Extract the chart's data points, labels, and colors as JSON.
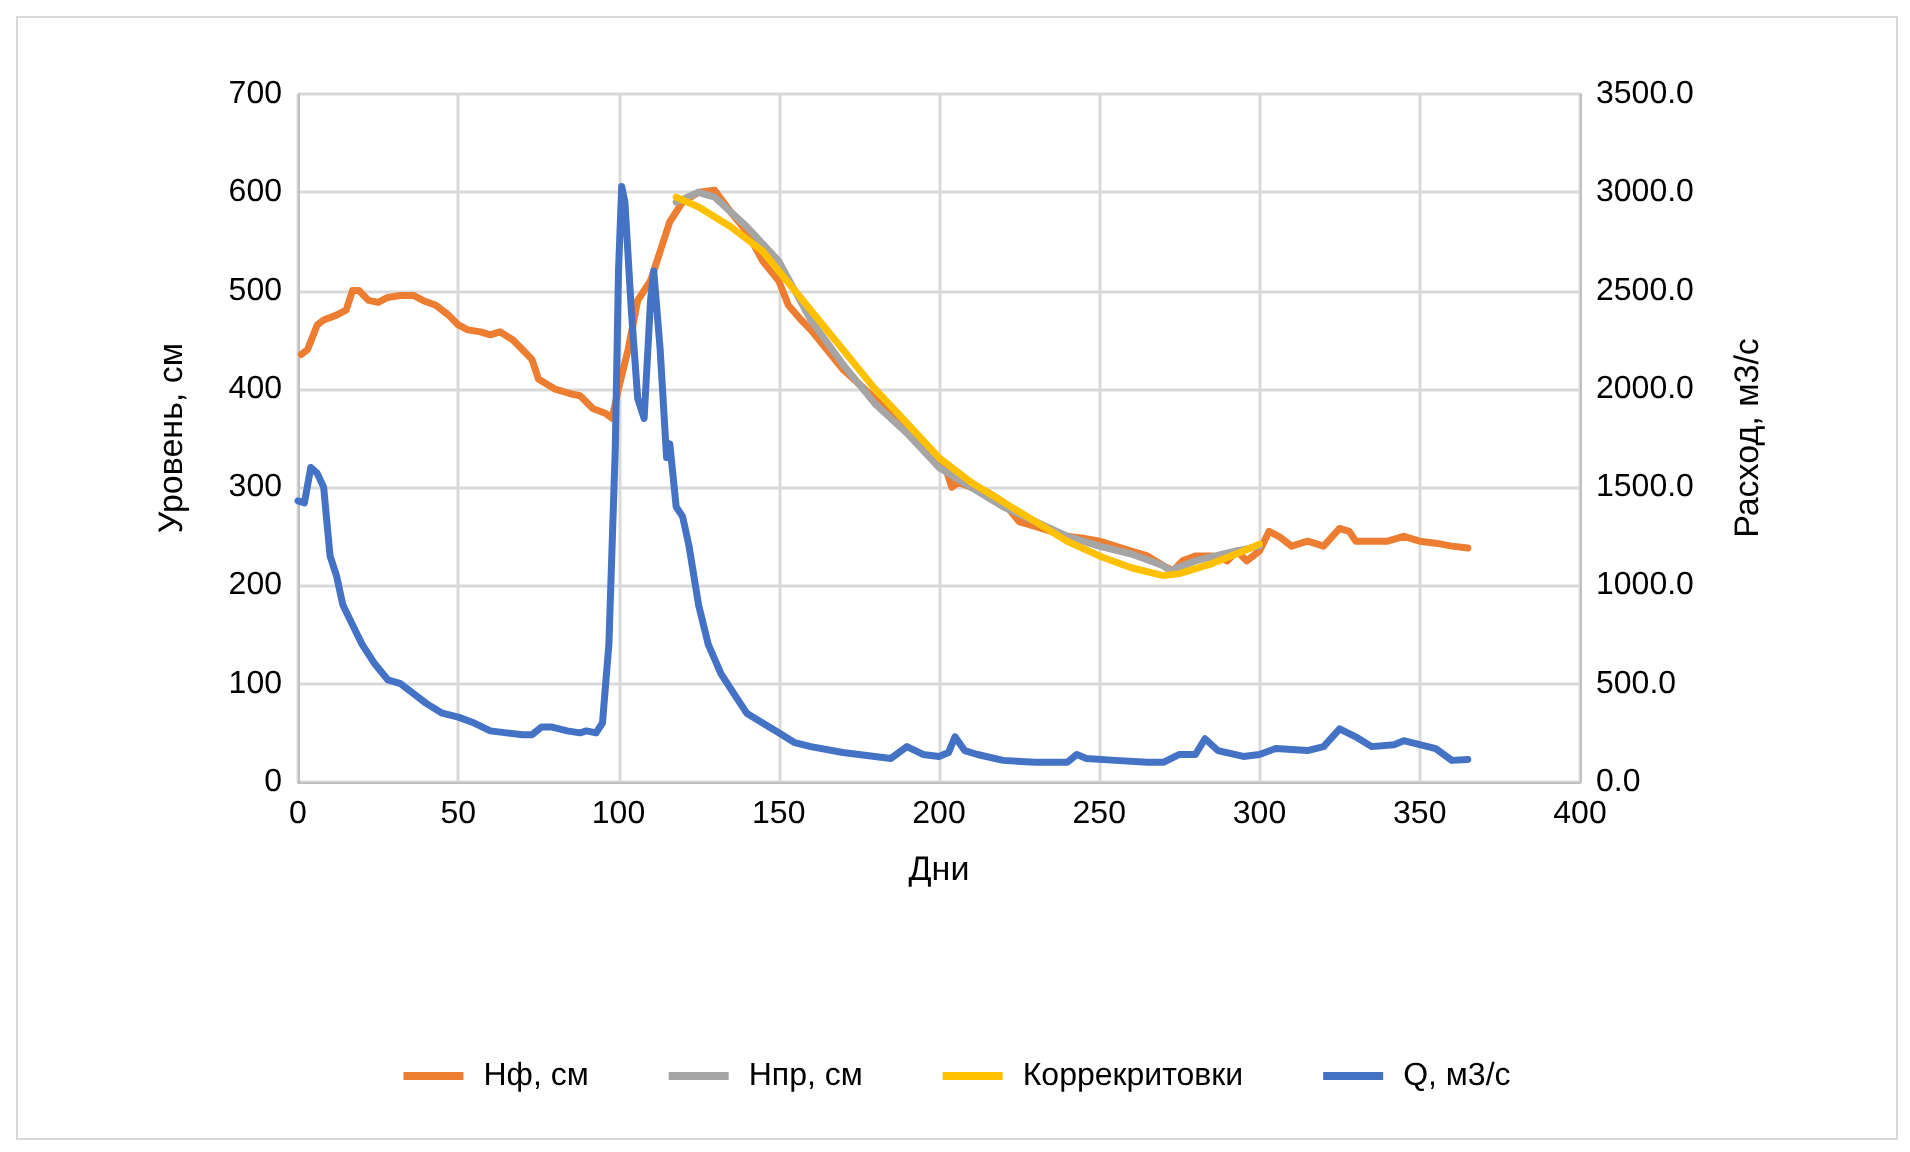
{
  "chart_data": {
    "type": "line",
    "xlabel": "Дни",
    "ylabel": "Уровень, см",
    "y2label": "Расход, м3/с",
    "xlim": [
      0,
      400
    ],
    "xticks": [
      0,
      50,
      100,
      150,
      200,
      250,
      300,
      350,
      400
    ],
    "ylim": [
      0,
      700
    ],
    "yticks": [
      0,
      100,
      200,
      300,
      400,
      500,
      600,
      700
    ],
    "y2lim": [
      0,
      3500
    ],
    "y2ticks": [
      {
        "value": 0,
        "label": "0.0"
      },
      {
        "value": 500,
        "label": "500.0"
      },
      {
        "value": 1000,
        "label": "1000.0"
      },
      {
        "value": 1500,
        "label": "1500.0"
      },
      {
        "value": 2000,
        "label": "2000.0"
      },
      {
        "value": 2500,
        "label": "2500.0"
      },
      {
        "value": 3000,
        "label": "3000.0"
      },
      {
        "value": 3500,
        "label": "3500.0"
      }
    ],
    "grid": true,
    "legend": "bottom",
    "marker": "none",
    "line_style": "solid",
    "series": [
      {
        "name": "Нф, см",
        "color": "#ed7d31",
        "x": [
          1,
          3,
          6,
          8,
          12,
          15,
          17,
          19,
          22,
          25,
          28,
          32,
          36,
          39,
          43,
          47,
          50,
          53,
          57,
          60,
          63,
          67,
          70,
          73,
          75,
          80,
          85,
          88,
          92,
          96,
          98,
          100,
          103,
          106,
          110,
          113,
          116,
          120,
          125,
          130,
          135,
          140,
          145,
          150,
          153,
          157,
          160,
          170,
          180,
          190,
          198,
          202,
          204,
          206,
          210,
          215,
          220,
          225,
          230,
          235,
          240,
          245,
          250,
          255,
          260,
          265,
          270,
          273,
          276,
          280,
          285,
          290,
          293,
          296,
          300,
          303,
          306,
          310,
          315,
          320,
          325,
          328,
          330,
          335,
          340,
          345,
          350,
          355,
          360,
          365
        ],
        "values": [
          435,
          440,
          465,
          470,
          475,
          480,
          500,
          500,
          490,
          488,
          493,
          495,
          495,
          490,
          485,
          475,
          465,
          460,
          458,
          455,
          458,
          450,
          440,
          430,
          410,
          400,
          395,
          393,
          380,
          375,
          370,
          400,
          440,
          490,
          510,
          540,
          570,
          590,
          600,
          602,
          580,
          560,
          530,
          510,
          485,
          470,
          460,
          420,
          390,
          360,
          330,
          320,
          300,
          305,
          300,
          295,
          285,
          265,
          260,
          255,
          250,
          248,
          245,
          240,
          235,
          230,
          220,
          215,
          225,
          230,
          230,
          225,
          235,
          225,
          235,
          255,
          250,
          240,
          245,
          240,
          258,
          255,
          245,
          245,
          245,
          250,
          245,
          243,
          240,
          238
        ]
      },
      {
        "name": "Нпр, см",
        "color": "#a5a5a5",
        "x": [
          118,
          125,
          130,
          140,
          150,
          160,
          170,
          180,
          190,
          200,
          210,
          220,
          230,
          240,
          250,
          260,
          270,
          272,
          280,
          290,
          300
        ],
        "values": [
          590,
          600,
          595,
          565,
          530,
          470,
          425,
          385,
          355,
          320,
          300,
          280,
          265,
          250,
          240,
          232,
          220,
          215,
          225,
          233,
          240
        ]
      },
      {
        "name": "Коррекритовки",
        "color": "#ffc000",
        "x": [
          118,
          125,
          135,
          145,
          150,
          160,
          170,
          180,
          190,
          200,
          210,
          220,
          230,
          240,
          250,
          260,
          270,
          275,
          285,
          295,
          300
        ],
        "values": [
          595,
          585,
          565,
          540,
          520,
          480,
          440,
          400,
          365,
          330,
          305,
          285,
          265,
          245,
          230,
          218,
          210,
          212,
          222,
          235,
          242
        ]
      },
      {
        "name": "Q, м3/с",
        "color": "#4472c4",
        "axis": "y2",
        "x": [
          0,
          2,
          4,
          6,
          8,
          10,
          12,
          14,
          17,
          20,
          24,
          28,
          32,
          36,
          40,
          45,
          50,
          55,
          60,
          65,
          70,
          73,
          76,
          79,
          84,
          88,
          90,
          93,
          95,
          97,
          99,
          100,
          101,
          102,
          104,
          106,
          108,
          110,
          111,
          113,
          115,
          116,
          118,
          120,
          122,
          125,
          128,
          132,
          136,
          140,
          145,
          150,
          155,
          160,
          170,
          180,
          185,
          190,
          195,
          200,
          203,
          205,
          208,
          212,
          220,
          230,
          240,
          243,
          246,
          255,
          265,
          270,
          275,
          280,
          283,
          287,
          295,
          300,
          305,
          315,
          320,
          325,
          330,
          335,
          342,
          345,
          355,
          360,
          365
        ],
        "values": [
          1430,
          1420,
          1600,
          1570,
          1500,
          1150,
          1050,
          900,
          800,
          700,
          600,
          520,
          500,
          450,
          400,
          350,
          330,
          300,
          260,
          250,
          240,
          240,
          280,
          280,
          260,
          250,
          260,
          250,
          300,
          700,
          1700,
          2600,
          3030,
          2950,
          2400,
          1950,
          1850,
          2450,
          2600,
          2200,
          1650,
          1720,
          1400,
          1350,
          1200,
          900,
          700,
          550,
          450,
          350,
          300,
          250,
          200,
          180,
          150,
          130,
          120,
          180,
          140,
          130,
          150,
          230,
          160,
          140,
          110,
          100,
          100,
          140,
          120,
          110,
          100,
          100,
          140,
          140,
          220,
          160,
          130,
          140,
          170,
          160,
          180,
          270,
          230,
          180,
          190,
          210,
          170,
          110,
          115
        ]
      }
    ]
  }
}
